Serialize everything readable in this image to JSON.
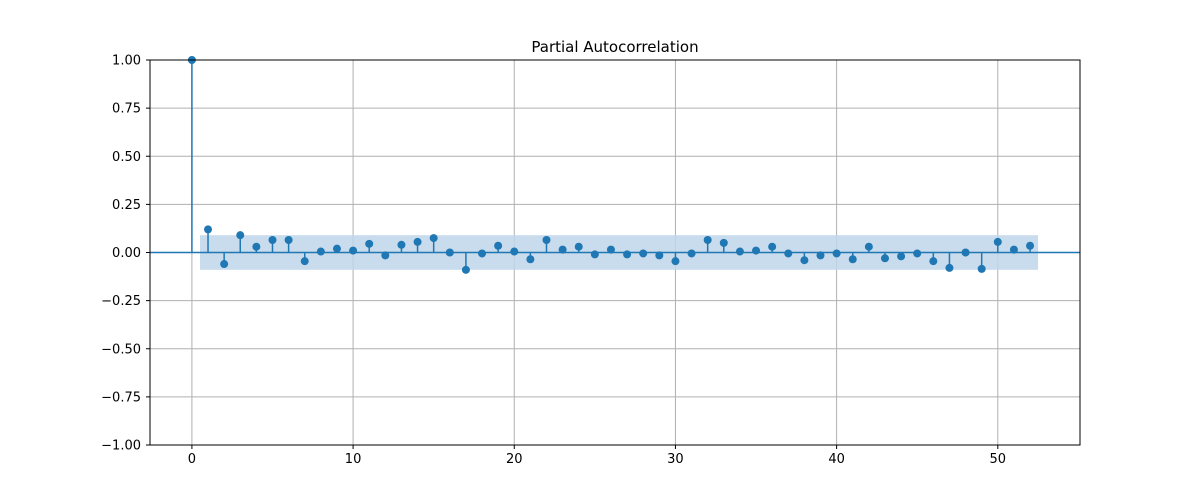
{
  "chart_data": {
    "type": "stem",
    "title": "Partial Autocorrelation",
    "xlabel": "",
    "ylabel": "",
    "xlim": [
      -2.6,
      55.1
    ],
    "ylim": [
      -1.0,
      1.0
    ],
    "x_ticks": [
      0,
      10,
      20,
      30,
      40,
      50
    ],
    "y_ticks": [
      -1.0,
      -0.75,
      -0.5,
      -0.25,
      0.0,
      0.25,
      0.5,
      0.75,
      1.0
    ],
    "y_tick_labels": [
      "−1.00",
      "−0.75",
      "−0.50",
      "−0.25",
      "0.00",
      "0.25",
      "0.50",
      "0.75",
      "1.00"
    ],
    "x_tick_labels": [
      "0",
      "10",
      "20",
      "30",
      "40",
      "50"
    ],
    "grid": true,
    "lags": [
      0,
      1,
      2,
      3,
      4,
      5,
      6,
      7,
      8,
      9,
      10,
      11,
      12,
      13,
      14,
      15,
      16,
      17,
      18,
      19,
      20,
      21,
      22,
      23,
      24,
      25,
      26,
      27,
      28,
      29,
      30,
      31,
      32,
      33,
      34,
      35,
      36,
      37,
      38,
      39,
      40,
      41,
      42,
      43,
      44,
      45,
      46,
      47,
      48,
      49,
      50,
      51,
      52
    ],
    "values": [
      1.0,
      0.12,
      -0.06,
      0.09,
      0.03,
      0.065,
      0.065,
      -0.045,
      0.005,
      0.02,
      0.01,
      0.045,
      -0.015,
      0.04,
      0.055,
      0.075,
      0.0,
      -0.09,
      -0.005,
      0.035,
      0.005,
      -0.035,
      0.065,
      0.015,
      0.03,
      -0.01,
      0.015,
      -0.01,
      -0.005,
      -0.015,
      -0.045,
      -0.005,
      0.065,
      0.05,
      0.005,
      0.01,
      0.03,
      -0.005,
      -0.04,
      -0.015,
      -0.005,
      -0.035,
      0.03,
      -0.03,
      -0.02,
      -0.005,
      -0.045,
      -0.08,
      0.0,
      -0.085,
      0.055,
      0.015,
      0.035
    ],
    "confidence_band": {
      "x_range": [
        0.5,
        52.5
      ],
      "lower": -0.09,
      "upper": 0.09
    },
    "colors": {
      "series": "#1f77b4",
      "band": "#bfd6ea",
      "grid": "#b0b0b0",
      "axis": "#000000"
    }
  }
}
